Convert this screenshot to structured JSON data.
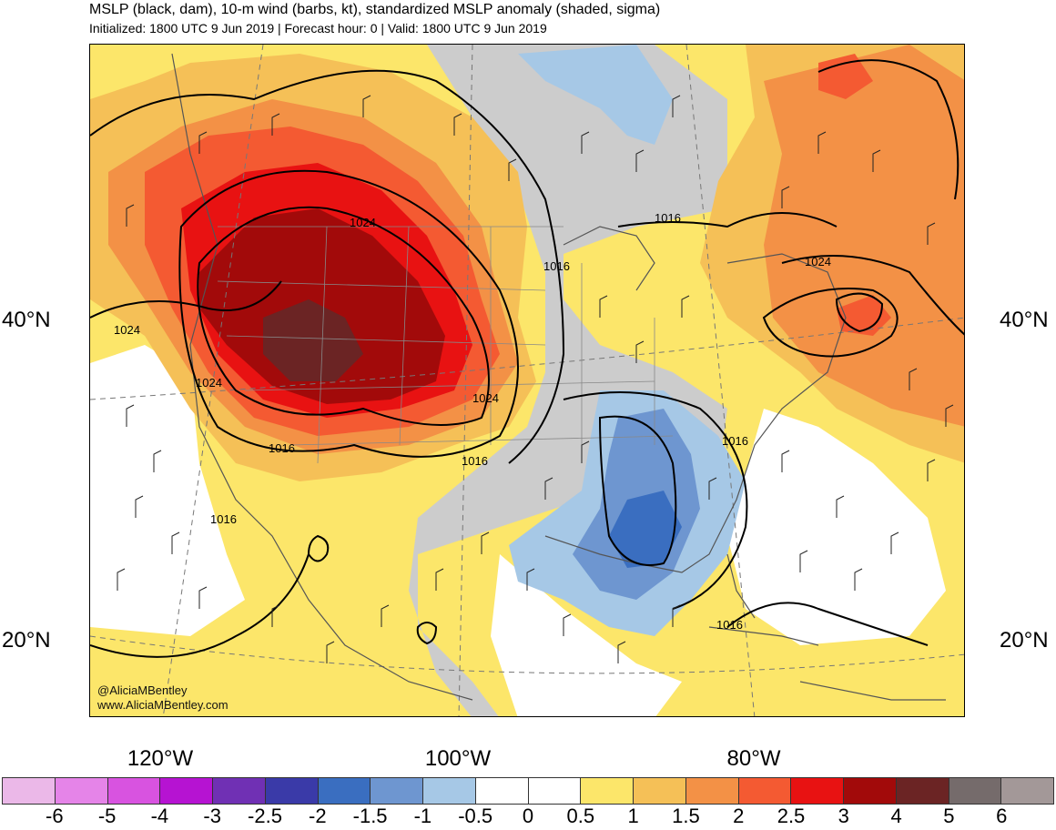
{
  "header": {
    "title": "MSLP (black, dam), 10-m wind (barbs, kt), standardized MSLP anomaly (shaded, sigma)",
    "subtitle": "Initialized: 1800 UTC 9 Jun 2019 | Forecast hour: 0 | Valid: 1800 UTC 9 Jun 2019"
  },
  "map": {
    "latitude_labels": [
      "40°N",
      "20°N"
    ],
    "longitude_labels": [
      "120°W",
      "100°W",
      "80°W"
    ],
    "credits": [
      "@AliciaMBentley",
      "www.AliciaMBentley.com"
    ],
    "isobar_labels": [
      "1024",
      "1016",
      "1016",
      "1024",
      "1024",
      "1024",
      "1024",
      "1016",
      "1016",
      "1016",
      "1016",
      "1016"
    ]
  },
  "colorbar": {
    "ticks": [
      "-6",
      "-5",
      "-4",
      "-3",
      "-2.5",
      "-2",
      "-1.5",
      "-1",
      "-0.5",
      "0",
      "0.5",
      "1",
      "1.5",
      "2",
      "2.5",
      "3",
      "4",
      "5",
      "6"
    ],
    "colors": [
      "#ebb8e8",
      "#e584e8",
      "#d853e0",
      "#b613d2",
      "#7030b4",
      "#3a3aa8",
      "#3a6ec0",
      "#6e96d0",
      "#a6c8e6",
      "#ffffff",
      "#ffffff",
      "#fce66a",
      "#f5c057",
      "#f39146",
      "#f45a32",
      "#e81212",
      "#a20a0a",
      "#6b2424",
      "#756b6b",
      "#a39898"
    ]
  }
}
